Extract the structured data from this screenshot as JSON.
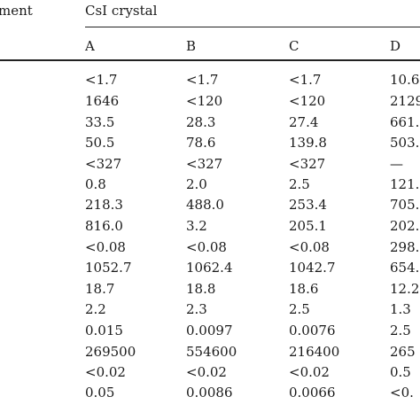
{
  "table": {
    "stub_header": "ment",
    "group_header": "CsI crystal",
    "columns": [
      "A",
      "B",
      "C",
      "D"
    ],
    "rows": [
      [
        "<1.7",
        "<1.7",
        "<1.7",
        "10.6"
      ],
      [
        "1646",
        "<120",
        "<120",
        "2129"
      ],
      [
        "33.5",
        "28.3",
        "27.4",
        "661."
      ],
      [
        "50.5",
        "78.6",
        "139.8",
        "503."
      ],
      [
        "<327",
        "<327",
        "<327",
        "—"
      ],
      [
        "0.8",
        "2.0",
        "2.5",
        "121."
      ],
      [
        "218.3",
        "488.0",
        "253.4",
        "705."
      ],
      [
        "816.0",
        "3.2",
        "205.1",
        "202."
      ],
      [
        "<0.08",
        "<0.08",
        "<0.08",
        "298."
      ],
      [
        "1052.7",
        "1062.4",
        "1042.7",
        "654."
      ],
      [
        "18.7",
        "18.8",
        "18.6",
        "12.2"
      ],
      [
        "2.2",
        "2.3",
        "2.5",
        "1.3"
      ],
      [
        "0.015",
        "0.0097",
        "0.0076",
        "2.5"
      ],
      [
        "269500",
        "554600",
        "216400",
        "265"
      ],
      [
        "<0.02",
        "<0.02",
        "<0.02",
        "0.5"
      ],
      [
        "0.05",
        "0.0086",
        "0.0066",
        "<0."
      ]
    ]
  }
}
